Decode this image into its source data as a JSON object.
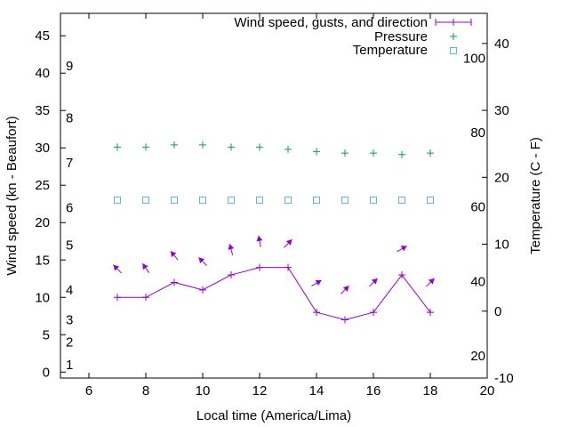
{
  "chart_data": {
    "type": "line",
    "xlabel": "Local time (America/Lima)",
    "ylabel": "Wind speed (kn - Beaufort)",
    "y2label": "Temperature (C - F)",
    "xlim": [
      5,
      20
    ],
    "ylim": [
      -0.8,
      48
    ],
    "y2lim": [
      -10,
      44.5
    ],
    "x_ticks": [
      6,
      8,
      10,
      12,
      14,
      16,
      18,
      20
    ],
    "y_ticks": [
      0,
      5,
      10,
      15,
      20,
      25,
      30,
      35,
      40,
      45
    ],
    "y2_ticks": [
      -10,
      0,
      10,
      20,
      30,
      40
    ],
    "beaufort_labels": [
      {
        "label": "1",
        "knots": 1
      },
      {
        "label": "2",
        "knots": 4
      },
      {
        "label": "3",
        "knots": 7
      },
      {
        "label": "4",
        "knots": 11
      },
      {
        "label": "5",
        "knots": 17
      },
      {
        "label": "6",
        "knots": 22
      },
      {
        "label": "7",
        "knots": 28
      },
      {
        "label": "8",
        "knots": 34
      },
      {
        "label": "9",
        "knots": 41
      }
    ],
    "fahrenheit_labels": [
      "20",
      "40",
      "60",
      "80",
      "100"
    ],
    "x": [
      7,
      8,
      9,
      10,
      11,
      12,
      13,
      14,
      15,
      16,
      17,
      18
    ],
    "series": [
      {
        "name": "Wind speed, gusts, and direction",
        "color": "#9400d3",
        "axis": "y",
        "values": [
          10,
          10,
          12,
          11,
          13,
          14,
          14,
          8,
          7,
          8,
          13,
          8
        ],
        "gusts": [
          13.8,
          13.9,
          15.6,
          14.8,
          16.4,
          17.5,
          17.2,
          11.9,
          11.0,
          12.0,
          16.5,
          12.0
        ],
        "direction_deg": [
          315,
          325,
          320,
          315,
          345,
          350,
          45,
          60,
          45,
          45,
          60,
          45
        ]
      },
      {
        "name": "Pressure",
        "color": "#009e73",
        "axis": "y",
        "values": [
          30.1,
          30.1,
          30.4,
          30.4,
          30.1,
          30.1,
          29.8,
          29.5,
          29.3,
          29.3,
          29.1,
          29.3
        ]
      },
      {
        "name": "Temperature",
        "color": "#56b4e9",
        "axis": "y2",
        "values": [
          16.6,
          16.6,
          16.6,
          16.6,
          16.6,
          16.6,
          16.6,
          16.6,
          16.6,
          16.6,
          16.6,
          16.6
        ]
      }
    ],
    "legend_position": "top-right",
    "grid": false
  }
}
